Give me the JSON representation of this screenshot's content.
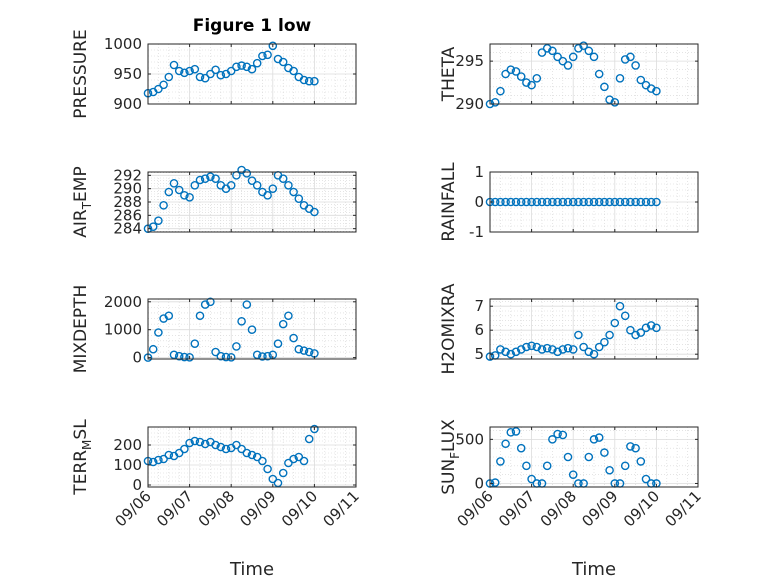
{
  "chart_data": [
    {
      "type": "scatter",
      "title": "Figure 1 low",
      "ylabel": "PRESSURE",
      "ylim": [
        900,
        1000
      ],
      "yticks": [
        900,
        950,
        1000
      ],
      "ytick_labels": [
        "900",
        "950",
        "1000"
      ],
      "x": [
        "09/06 00:00",
        "09/06 03:00",
        "09/06 06:00",
        "09/06 09:00",
        "09/06 12:00",
        "09/06 15:00",
        "09/06 18:00",
        "09/06 21:00",
        "09/07 00:00",
        "09/07 03:00",
        "09/07 06:00",
        "09/07 09:00",
        "09/07 12:00",
        "09/07 15:00",
        "09/07 18:00",
        "09/07 21:00",
        "09/08 00:00",
        "09/08 03:00",
        "09/08 06:00",
        "09/08 09:00",
        "09/08 12:00",
        "09/08 15:00",
        "09/08 18:00",
        "09/08 21:00",
        "09/09 00:00",
        "09/09 03:00",
        "09/09 06:00",
        "09/09 09:00",
        "09/09 12:00",
        "09/09 15:00",
        "09/09 18:00",
        "09/09 21:00",
        "09/10 00:00"
      ],
      "y": [
        918,
        920,
        925,
        932,
        945,
        965,
        955,
        952,
        955,
        958,
        945,
        943,
        950,
        957,
        948,
        950,
        955,
        962,
        964,
        962,
        958,
        968,
        980,
        982,
        997,
        975,
        970,
        960,
        955,
        945,
        940,
        938,
        938
      ]
    },
    {
      "type": "scatter",
      "ylabel": "THETA",
      "ylim": [
        290,
        297
      ],
      "yticks": [
        290,
        295
      ],
      "ytick_labels": [
        "290",
        "295"
      ],
      "x": [
        "09/06 00:00",
        "09/06 03:00",
        "09/06 06:00",
        "09/06 09:00",
        "09/06 12:00",
        "09/06 15:00",
        "09/06 18:00",
        "09/06 21:00",
        "09/07 00:00",
        "09/07 03:00",
        "09/07 06:00",
        "09/07 09:00",
        "09/07 12:00",
        "09/07 15:00",
        "09/07 18:00",
        "09/07 21:00",
        "09/08 00:00",
        "09/08 03:00",
        "09/08 06:00",
        "09/08 09:00",
        "09/08 12:00",
        "09/08 15:00",
        "09/08 18:00",
        "09/08 21:00",
        "09/09 00:00",
        "09/09 03:00",
        "09/09 06:00",
        "09/09 09:00",
        "09/09 12:00",
        "09/09 15:00",
        "09/09 18:00",
        "09/09 21:00",
        "09/10 00:00"
      ],
      "y": [
        290,
        290.2,
        291.5,
        293.5,
        294,
        293.8,
        293.2,
        292.5,
        292.2,
        293,
        296,
        296.5,
        296.2,
        295.5,
        295,
        294.5,
        295.5,
        296.5,
        296.8,
        296.2,
        295.5,
        293.5,
        292,
        290.5,
        290.2,
        293,
        295.2,
        295.5,
        294.5,
        292.8,
        292.2,
        291.8,
        291.5
      ]
    },
    {
      "type": "scatter",
      "ylabel_parts": [
        "AIR",
        "T",
        "EMP"
      ],
      "ylim": [
        283.5,
        292.5
      ],
      "yticks": [
        284,
        286,
        288,
        290,
        292
      ],
      "ytick_labels": [
        "284",
        "286",
        "288",
        "290",
        "292"
      ],
      "x": [
        "09/06 00:00",
        "09/06 03:00",
        "09/06 06:00",
        "09/06 09:00",
        "09/06 12:00",
        "09/06 15:00",
        "09/06 18:00",
        "09/06 21:00",
        "09/07 00:00",
        "09/07 03:00",
        "09/07 06:00",
        "09/07 09:00",
        "09/07 12:00",
        "09/07 15:00",
        "09/07 18:00",
        "09/07 21:00",
        "09/08 00:00",
        "09/08 03:00",
        "09/08 06:00",
        "09/08 09:00",
        "09/08 12:00",
        "09/08 15:00",
        "09/08 18:00",
        "09/08 21:00",
        "09/09 00:00",
        "09/09 03:00",
        "09/09 06:00",
        "09/09 09:00",
        "09/09 12:00",
        "09/09 15:00",
        "09/09 18:00",
        "09/09 21:00",
        "09/10 00:00"
      ],
      "y": [
        284,
        284.3,
        285.2,
        287.5,
        289.5,
        290.8,
        289.8,
        289,
        288.7,
        290.5,
        291.3,
        291.5,
        291.8,
        291.5,
        290.5,
        290,
        290.5,
        292,
        292.8,
        292.3,
        291.2,
        290.5,
        289.5,
        289,
        290,
        292,
        291.5,
        290.5,
        289.5,
        288.5,
        287.5,
        287,
        286.5
      ]
    },
    {
      "type": "scatter",
      "ylabel": "RAINFALL",
      "ylim": [
        -1,
        1
      ],
      "yticks": [
        -1,
        0,
        1
      ],
      "ytick_labels": [
        "-1",
        "0",
        "1"
      ],
      "x": [
        "09/06 00:00",
        "09/06 03:00",
        "09/06 06:00",
        "09/06 09:00",
        "09/06 12:00",
        "09/06 15:00",
        "09/06 18:00",
        "09/06 21:00",
        "09/07 00:00",
        "09/07 03:00",
        "09/07 06:00",
        "09/07 09:00",
        "09/07 12:00",
        "09/07 15:00",
        "09/07 18:00",
        "09/07 21:00",
        "09/08 00:00",
        "09/08 03:00",
        "09/08 06:00",
        "09/08 09:00",
        "09/08 12:00",
        "09/08 15:00",
        "09/08 18:00",
        "09/08 21:00",
        "09/09 00:00",
        "09/09 03:00",
        "09/09 06:00",
        "09/09 09:00",
        "09/09 12:00",
        "09/09 15:00",
        "09/09 18:00",
        "09/09 21:00",
        "09/10 00:00"
      ],
      "y": [
        0,
        0,
        0,
        0,
        0,
        0,
        0,
        0,
        0,
        0,
        0,
        0,
        0,
        0,
        0,
        0,
        0,
        0,
        0,
        0,
        0,
        0,
        0,
        0,
        0,
        0,
        0,
        0,
        0,
        0,
        0,
        0,
        0
      ]
    },
    {
      "type": "scatter",
      "ylabel": "MIXDEPTH",
      "ylim": [
        -50,
        2100
      ],
      "yticks": [
        0,
        1000,
        2000
      ],
      "ytick_labels": [
        "0",
        "1000",
        "2000"
      ],
      "x": [
        "09/06 00:00",
        "09/06 03:00",
        "09/06 06:00",
        "09/06 09:00",
        "09/06 12:00",
        "09/06 15:00",
        "09/06 18:00",
        "09/06 21:00",
        "09/07 00:00",
        "09/07 03:00",
        "09/07 06:00",
        "09/07 09:00",
        "09/07 12:00",
        "09/07 15:00",
        "09/07 18:00",
        "09/07 21:00",
        "09/08 00:00",
        "09/08 03:00",
        "09/08 06:00",
        "09/08 09:00",
        "09/08 12:00",
        "09/08 15:00",
        "09/08 18:00",
        "09/08 21:00",
        "09/09 00:00",
        "09/09 03:00",
        "09/09 06:00",
        "09/09 09:00",
        "09/09 12:00",
        "09/09 15:00",
        "09/09 18:00",
        "09/09 21:00",
        "09/10 00:00"
      ],
      "y": [
        0,
        300,
        900,
        1400,
        1500,
        100,
        50,
        20,
        10,
        500,
        1500,
        1900,
        2000,
        200,
        50,
        20,
        10,
        400,
        1300,
        1900,
        1000,
        100,
        40,
        50,
        100,
        500,
        1200,
        1500,
        700,
        300,
        250,
        200,
        150
      ]
    },
    {
      "type": "scatter",
      "ylabel": "H2OMIXRA",
      "ylim": [
        4.8,
        7.3
      ],
      "yticks": [
        5,
        6,
        7
      ],
      "ytick_labels": [
        "5",
        "6",
        "7"
      ],
      "x": [
        "09/06 00:00",
        "09/06 03:00",
        "09/06 06:00",
        "09/06 09:00",
        "09/06 12:00",
        "09/06 15:00",
        "09/06 18:00",
        "09/06 21:00",
        "09/07 00:00",
        "09/07 03:00",
        "09/07 06:00",
        "09/07 09:00",
        "09/07 12:00",
        "09/07 15:00",
        "09/07 18:00",
        "09/07 21:00",
        "09/08 00:00",
        "09/08 03:00",
        "09/08 06:00",
        "09/08 09:00",
        "09/08 12:00",
        "09/08 15:00",
        "09/08 18:00",
        "09/08 21:00",
        "09/09 00:00",
        "09/09 03:00",
        "09/09 06:00",
        "09/09 09:00",
        "09/09 12:00",
        "09/09 15:00",
        "09/09 18:00",
        "09/09 21:00",
        "09/10 00:00"
      ],
      "y": [
        4.9,
        4.95,
        5.2,
        5.1,
        5.0,
        5.1,
        5.2,
        5.3,
        5.35,
        5.3,
        5.2,
        5.25,
        5.2,
        5.1,
        5.2,
        5.25,
        5.2,
        5.8,
        5.3,
        5.1,
        5.0,
        5.3,
        5.5,
        5.8,
        6.3,
        7.0,
        6.6,
        6.0,
        5.8,
        5.9,
        6.1,
        6.2,
        6.1
      ]
    },
    {
      "type": "scatter",
      "ylabel_parts": [
        "TERR",
        "M",
        "SL"
      ],
      "ylim": [
        -10,
        290
      ],
      "yticks": [
        0,
        100,
        200
      ],
      "ytick_labels": [
        "0",
        "100",
        "200"
      ],
      "x": [
        "09/06 00:00",
        "09/06 03:00",
        "09/06 06:00",
        "09/06 09:00",
        "09/06 12:00",
        "09/06 15:00",
        "09/06 18:00",
        "09/06 21:00",
        "09/07 00:00",
        "09/07 03:00",
        "09/07 06:00",
        "09/07 09:00",
        "09/07 12:00",
        "09/07 15:00",
        "09/07 18:00",
        "09/07 21:00",
        "09/08 00:00",
        "09/08 03:00",
        "09/08 06:00",
        "09/08 09:00",
        "09/08 12:00",
        "09/08 15:00",
        "09/08 18:00",
        "09/08 21:00",
        "09/09 00:00",
        "09/09 03:00",
        "09/09 06:00",
        "09/09 09:00",
        "09/09 12:00",
        "09/09 15:00",
        "09/09 18:00",
        "09/09 21:00",
        "09/10 00:00"
      ],
      "y": [
        120,
        115,
        125,
        130,
        150,
        145,
        160,
        180,
        210,
        220,
        215,
        205,
        215,
        200,
        190,
        180,
        185,
        200,
        180,
        160,
        150,
        140,
        120,
        80,
        30,
        10,
        60,
        110,
        130,
        140,
        120,
        230,
        280
      ]
    },
    {
      "type": "scatter",
      "ylabel_parts": [
        "SUN",
        "F",
        "LUX"
      ],
      "ylim": [
        -40,
        640
      ],
      "yticks": [
        0,
        500
      ],
      "ytick_labels": [
        "0",
        "500"
      ],
      "x": [
        "09/06 00:00",
        "09/06 03:00",
        "09/06 06:00",
        "09/06 09:00",
        "09/06 12:00",
        "09/06 15:00",
        "09/06 18:00",
        "09/06 21:00",
        "09/07 00:00",
        "09/07 03:00",
        "09/07 06:00",
        "09/07 09:00",
        "09/07 12:00",
        "09/07 15:00",
        "09/07 18:00",
        "09/07 21:00",
        "09/08 00:00",
        "09/08 03:00",
        "09/08 06:00",
        "09/08 09:00",
        "09/08 12:00",
        "09/08 15:00",
        "09/08 18:00",
        "09/08 21:00",
        "09/09 00:00",
        "09/09 03:00",
        "09/09 06:00",
        "09/09 09:00",
        "09/09 12:00",
        "09/09 15:00",
        "09/09 18:00",
        "09/09 21:00",
        "09/10 00:00"
      ],
      "y": [
        0,
        10,
        250,
        450,
        580,
        590,
        400,
        200,
        50,
        0,
        0,
        200,
        500,
        560,
        550,
        300,
        100,
        0,
        0,
        300,
        500,
        520,
        350,
        150,
        0,
        0,
        200,
        420,
        400,
        250,
        50,
        0,
        0
      ]
    }
  ],
  "x_axis": {
    "label": "Time",
    "ticks": [
      "09/06 00:00",
      "09/07 00:00",
      "09/08 00:00",
      "09/09 00:00",
      "09/10 00:00",
      "09/11 00:00"
    ],
    "tick_labels": [
      "09/06",
      "09/07",
      "09/08",
      "09/09",
      "09/10",
      "09/11"
    ],
    "range": [
      "09/06 00:00",
      "09/11 00:00"
    ]
  },
  "style": {
    "marker": "open-circle",
    "marker_color": "#0072BD",
    "grid": "on, dotted, with minor gridlines",
    "box": "on"
  }
}
